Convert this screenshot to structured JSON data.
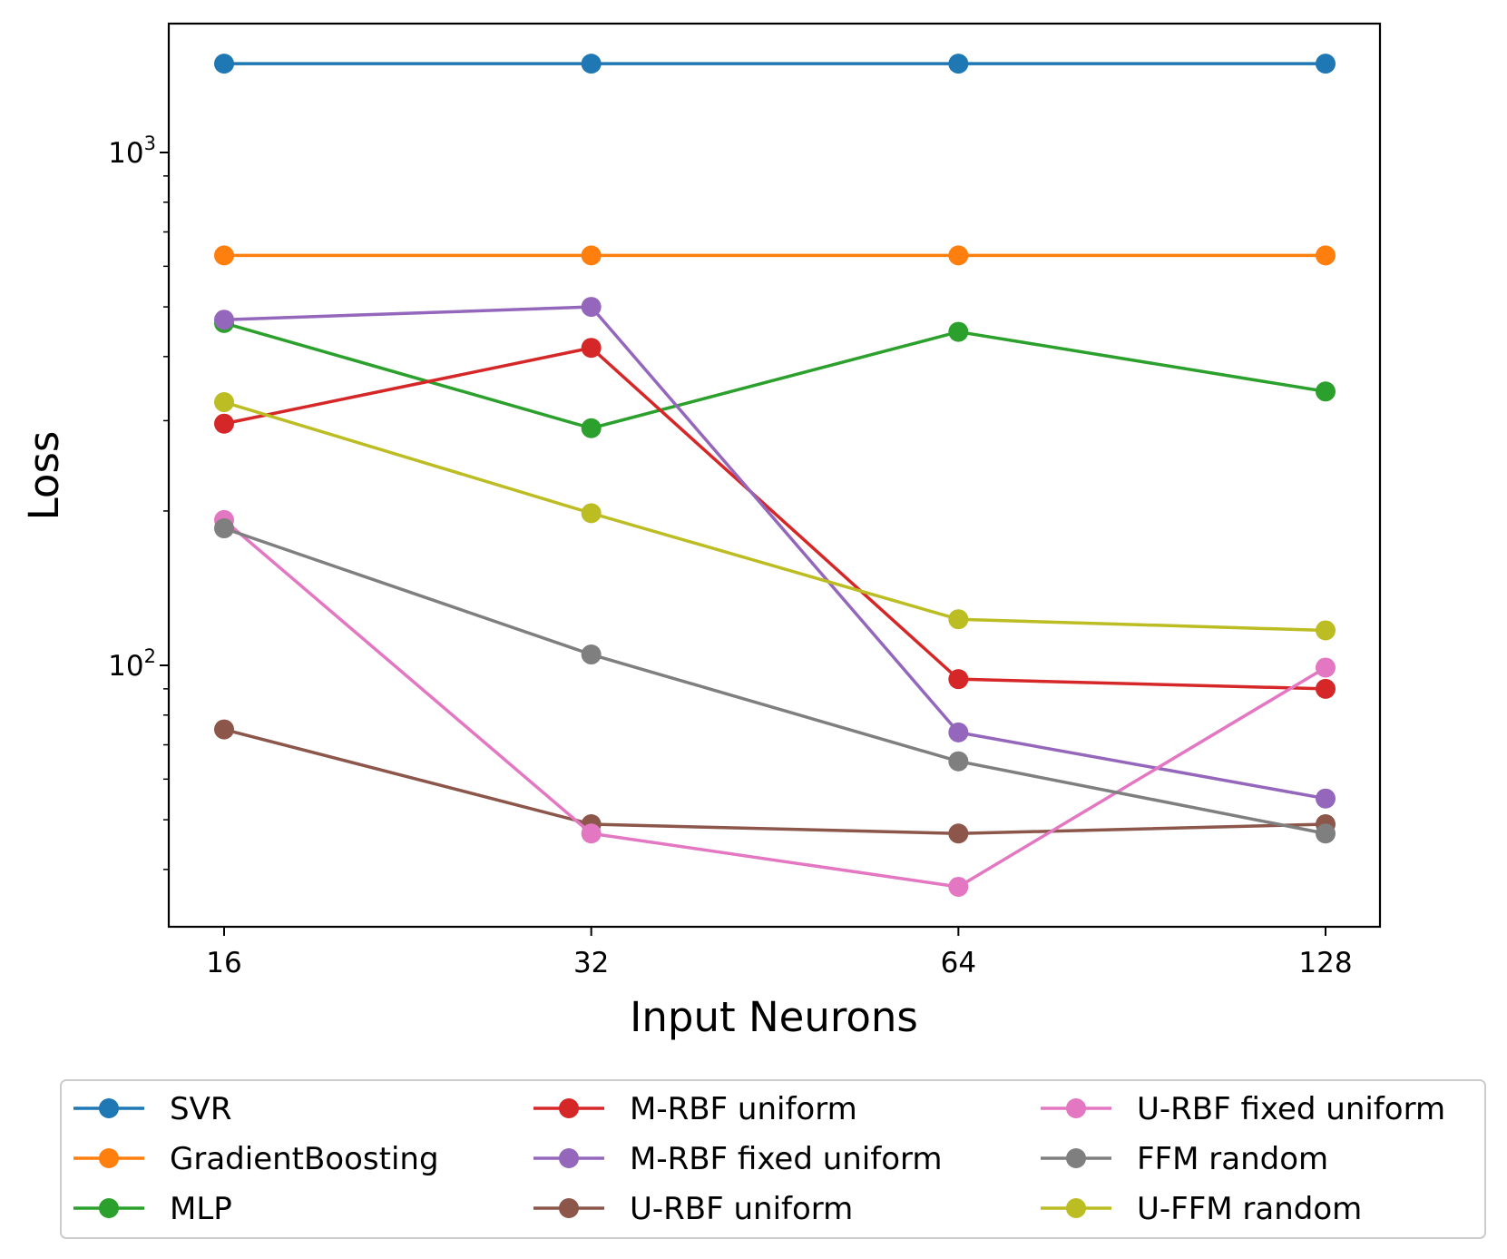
{
  "chart_data": {
    "type": "line",
    "xscale": "log2",
    "yscale": "log",
    "x": [
      16,
      32,
      64,
      128
    ],
    "x_tick_labels": [
      "16",
      "32",
      "64",
      "128"
    ],
    "y_tick_labels": [
      {
        "base": "10",
        "exp": "3",
        "value": 1000
      },
      {
        "base": "10",
        "exp": "2",
        "value": 100
      }
    ],
    "xlabel": "Input Neurons",
    "ylabel": "Loss",
    "ylim": [
      33,
      1650
    ],
    "legend_position": "bottom-outside",
    "series": [
      {
        "name": "SVR",
        "color": "#1f77b4",
        "values": [
          1490,
          1490,
          1490,
          1490
        ]
      },
      {
        "name": "GradientBoosting",
        "color": "#ff7f0e",
        "values": [
          630,
          630,
          630,
          630
        ]
      },
      {
        "name": "MLP",
        "color": "#2ca02c",
        "values": [
          465,
          290,
          447,
          342
        ]
      },
      {
        "name": "M-RBF uniform",
        "color": "#d62728",
        "values": [
          296,
          416,
          94,
          90
        ]
      },
      {
        "name": "M-RBF fixed uniform",
        "color": "#9467bd",
        "values": [
          472,
          500,
          74,
          55
        ]
      },
      {
        "name": "U-RBF uniform",
        "color": "#8c564b",
        "values": [
          75,
          49,
          47,
          49
        ]
      },
      {
        "name": "U-RBF fixed uniform",
        "color": "#e377c2",
        "values": [
          192,
          47,
          37,
          99
        ]
      },
      {
        "name": "FFM random",
        "color": "#7f7f7f",
        "values": [
          185,
          105,
          65,
          47
        ]
      },
      {
        "name": "U-FFM random",
        "color": "#bcbd22",
        "values": [
          326,
          198,
          123,
          117
        ]
      }
    ]
  }
}
